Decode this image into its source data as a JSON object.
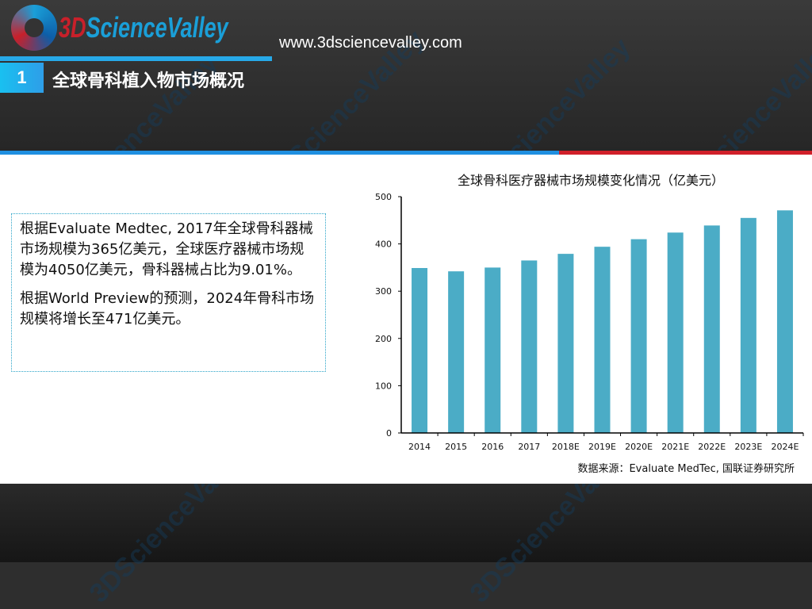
{
  "header": {
    "logo_text": "3DScienceValley",
    "url": "www.3dsciencevalley.com",
    "section_number": "1",
    "section_title": "全球骨科植入物市场概况"
  },
  "body": {
    "paragraphs": [
      "根据Evaluate Medtec, 2017年全球骨科器械市场规模为365亿美元，全球医疗器械市场规模为4050亿美元，骨科器械占比为9.01%。",
      "根据World Preview的预测，2024年骨科市场规模将增长至471亿美元。"
    ]
  },
  "chart_data": {
    "type": "bar",
    "title": "全球骨科医疗器械市场规模变化情况（亿美元）",
    "categories": [
      "2014",
      "2015",
      "2016",
      "2017",
      "2018E",
      "2019E",
      "2020E",
      "2021E",
      "2022E",
      "2023E",
      "2024E"
    ],
    "values": [
      349,
      342,
      350,
      365,
      379,
      394,
      410,
      424,
      439,
      455,
      471
    ],
    "ylim": [
      0,
      500
    ],
    "yticks": [
      "0",
      "100",
      "200",
      "300",
      "400",
      "500"
    ],
    "grid": false,
    "bar_color": "#4bacc6",
    "source": "数据来源：Evaluate MedTec, 国联证券研究所"
  },
  "colors": {
    "accent_blue": "#27a9e8",
    "accent_red": "#d0202a"
  }
}
